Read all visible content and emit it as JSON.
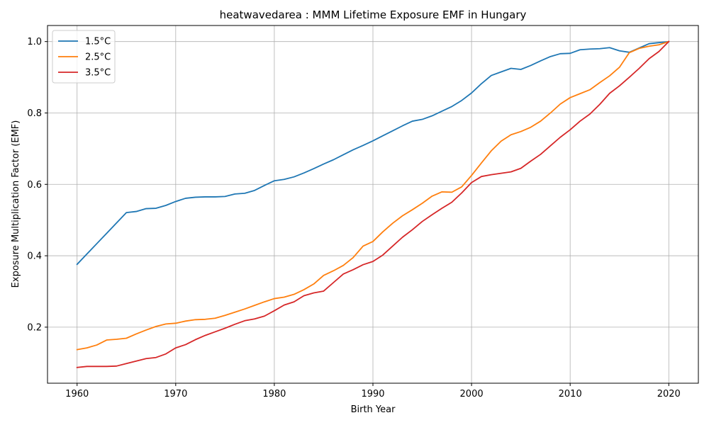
{
  "chart_data": {
    "type": "line",
    "title": "heatwavedarea : MMM Lifetime Exposure EMF in Hungary",
    "xlabel": "Birth Year",
    "ylabel": "Exposure Multiplication Factor (EMF)",
    "xlim": [
      1957,
      2023
    ],
    "ylim": [
      0.043,
      1.045
    ],
    "xticks": [
      1960,
      1970,
      1980,
      1990,
      2000,
      2010,
      2020
    ],
    "yticks": [
      0.2,
      0.4,
      0.6,
      0.8,
      1.0
    ],
    "xtick_labels": [
      "1960",
      "1970",
      "1980",
      "1990",
      "2000",
      "2010",
      "2020"
    ],
    "ytick_labels": [
      "0.2",
      "0.4",
      "0.6",
      "0.8",
      "1.0"
    ],
    "grid": true,
    "legend_position": "top-left",
    "x": [
      1960,
      1961,
      1962,
      1963,
      1964,
      1965,
      1966,
      1967,
      1968,
      1969,
      1970,
      1971,
      1972,
      1973,
      1974,
      1975,
      1976,
      1977,
      1978,
      1979,
      1980,
      1981,
      1982,
      1983,
      1984,
      1985,
      1986,
      1987,
      1988,
      1989,
      1990,
      1991,
      1992,
      1993,
      1994,
      1995,
      1996,
      1997,
      1998,
      1999,
      2000,
      2001,
      2002,
      2003,
      2004,
      2005,
      2006,
      2007,
      2008,
      2009,
      2010,
      2011,
      2012,
      2013,
      2014,
      2015,
      2016,
      2017,
      2018,
      2019,
      2020
    ],
    "series": [
      {
        "name": "1.5°C",
        "color": "#1f77b4",
        "values": [
          0.376,
          0.405,
          0.434,
          0.463,
          0.492,
          0.521,
          0.524,
          0.532,
          0.533,
          0.541,
          0.552,
          0.561,
          0.564,
          0.565,
          0.565,
          0.566,
          0.573,
          0.575,
          0.583,
          0.597,
          0.61,
          0.614,
          0.621,
          0.632,
          0.644,
          0.657,
          0.669,
          0.683,
          0.697,
          0.709,
          0.722,
          0.736,
          0.75,
          0.764,
          0.777,
          0.782,
          0.792,
          0.805,
          0.818,
          0.835,
          0.856,
          0.882,
          0.905,
          0.915,
          0.925,
          0.922,
          0.933,
          0.946,
          0.958,
          0.966,
          0.967,
          0.977,
          0.979,
          0.98,
          0.983,
          0.974,
          0.97,
          0.982,
          0.994,
          0.997,
          1.0
        ]
      },
      {
        "name": "2.5°C",
        "color": "#ff7f0e",
        "values": [
          0.137,
          0.142,
          0.15,
          0.164,
          0.166,
          0.169,
          0.181,
          0.192,
          0.202,
          0.209,
          0.211,
          0.217,
          0.221,
          0.222,
          0.225,
          0.233,
          0.242,
          0.251,
          0.261,
          0.271,
          0.28,
          0.284,
          0.292,
          0.305,
          0.321,
          0.345,
          0.358,
          0.373,
          0.395,
          0.427,
          0.44,
          0.467,
          0.491,
          0.512,
          0.529,
          0.547,
          0.567,
          0.579,
          0.578,
          0.593,
          0.625,
          0.66,
          0.694,
          0.721,
          0.739,
          0.748,
          0.76,
          0.777,
          0.8,
          0.825,
          0.843,
          0.854,
          0.865,
          0.885,
          0.904,
          0.928,
          0.969,
          0.981,
          0.987,
          0.991,
          1.0
        ]
      },
      {
        "name": "3.5°C",
        "color": "#d62728",
        "values": [
          0.087,
          0.09,
          0.09,
          0.09,
          0.091,
          0.098,
          0.105,
          0.112,
          0.115,
          0.125,
          0.142,
          0.151,
          0.165,
          0.177,
          0.187,
          0.197,
          0.208,
          0.218,
          0.223,
          0.231,
          0.246,
          0.262,
          0.271,
          0.288,
          0.296,
          0.301,
          0.325,
          0.349,
          0.361,
          0.375,
          0.384,
          0.402,
          0.427,
          0.452,
          0.473,
          0.496,
          0.515,
          0.533,
          0.55,
          0.576,
          0.605,
          0.622,
          0.627,
          0.631,
          0.635,
          0.645,
          0.665,
          0.684,
          0.708,
          0.732,
          0.753,
          0.777,
          0.797,
          0.824,
          0.855,
          0.876,
          0.9,
          0.925,
          0.952,
          0.972,
          1.0
        ]
      }
    ]
  }
}
